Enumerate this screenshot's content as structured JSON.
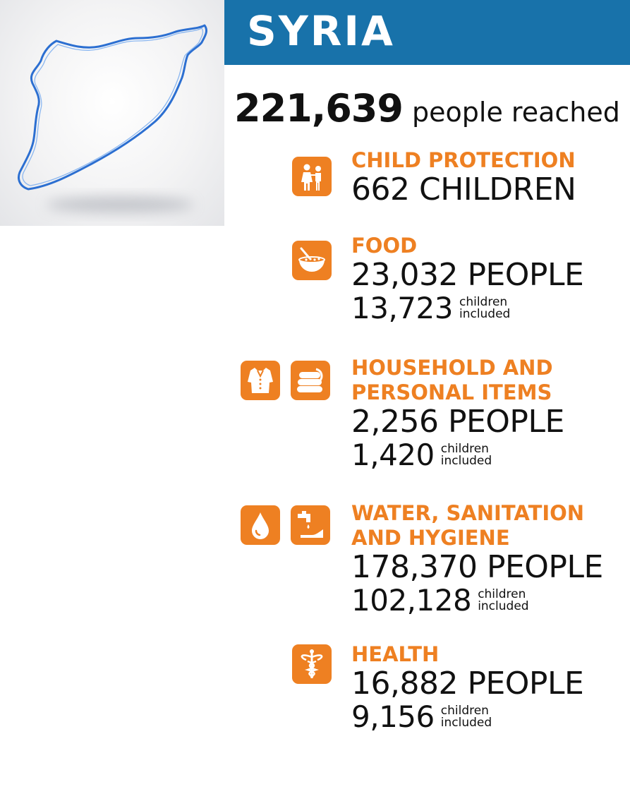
{
  "header": {
    "country": "SYRIA"
  },
  "summary": {
    "count": "221,639",
    "label": "people reached"
  },
  "sectors": [
    {
      "title_lines": [
        "CHILD PROTECTION"
      ],
      "value": "662 CHILDREN",
      "icons": [
        "children-icon"
      ]
    },
    {
      "title_lines": [
        "FOOD"
      ],
      "value": "23,032 PEOPLE",
      "children": "13,723",
      "children_label": [
        "children",
        "included"
      ],
      "icons": [
        "food-bowl-icon"
      ]
    },
    {
      "title_lines": [
        "HOUSEHOLD AND",
        "PERSONAL ITEMS"
      ],
      "value": "2,256 PEOPLE",
      "children": "1,420",
      "children_label": [
        "children",
        "included"
      ],
      "icons": [
        "clothing-icon",
        "blankets-icon"
      ]
    },
    {
      "title_lines": [
        "WATER, SANITATION",
        "AND HYGIENE"
      ],
      "value": "178,370 PEOPLE",
      "children": "102,128",
      "children_label": [
        "children",
        "included"
      ],
      "icons": [
        "water-drop-icon",
        "handwashing-icon"
      ]
    },
    {
      "title_lines": [
        "HEALTH"
      ],
      "value": "16,882 PEOPLE",
      "children": "9,156",
      "children_label": [
        "children",
        "included"
      ],
      "icons": [
        "health-caduceus-icon"
      ]
    }
  ],
  "colors": {
    "header_blue": "#1872aa",
    "accent_orange": "#ee8022",
    "map_outline": "#2c6fd1"
  }
}
